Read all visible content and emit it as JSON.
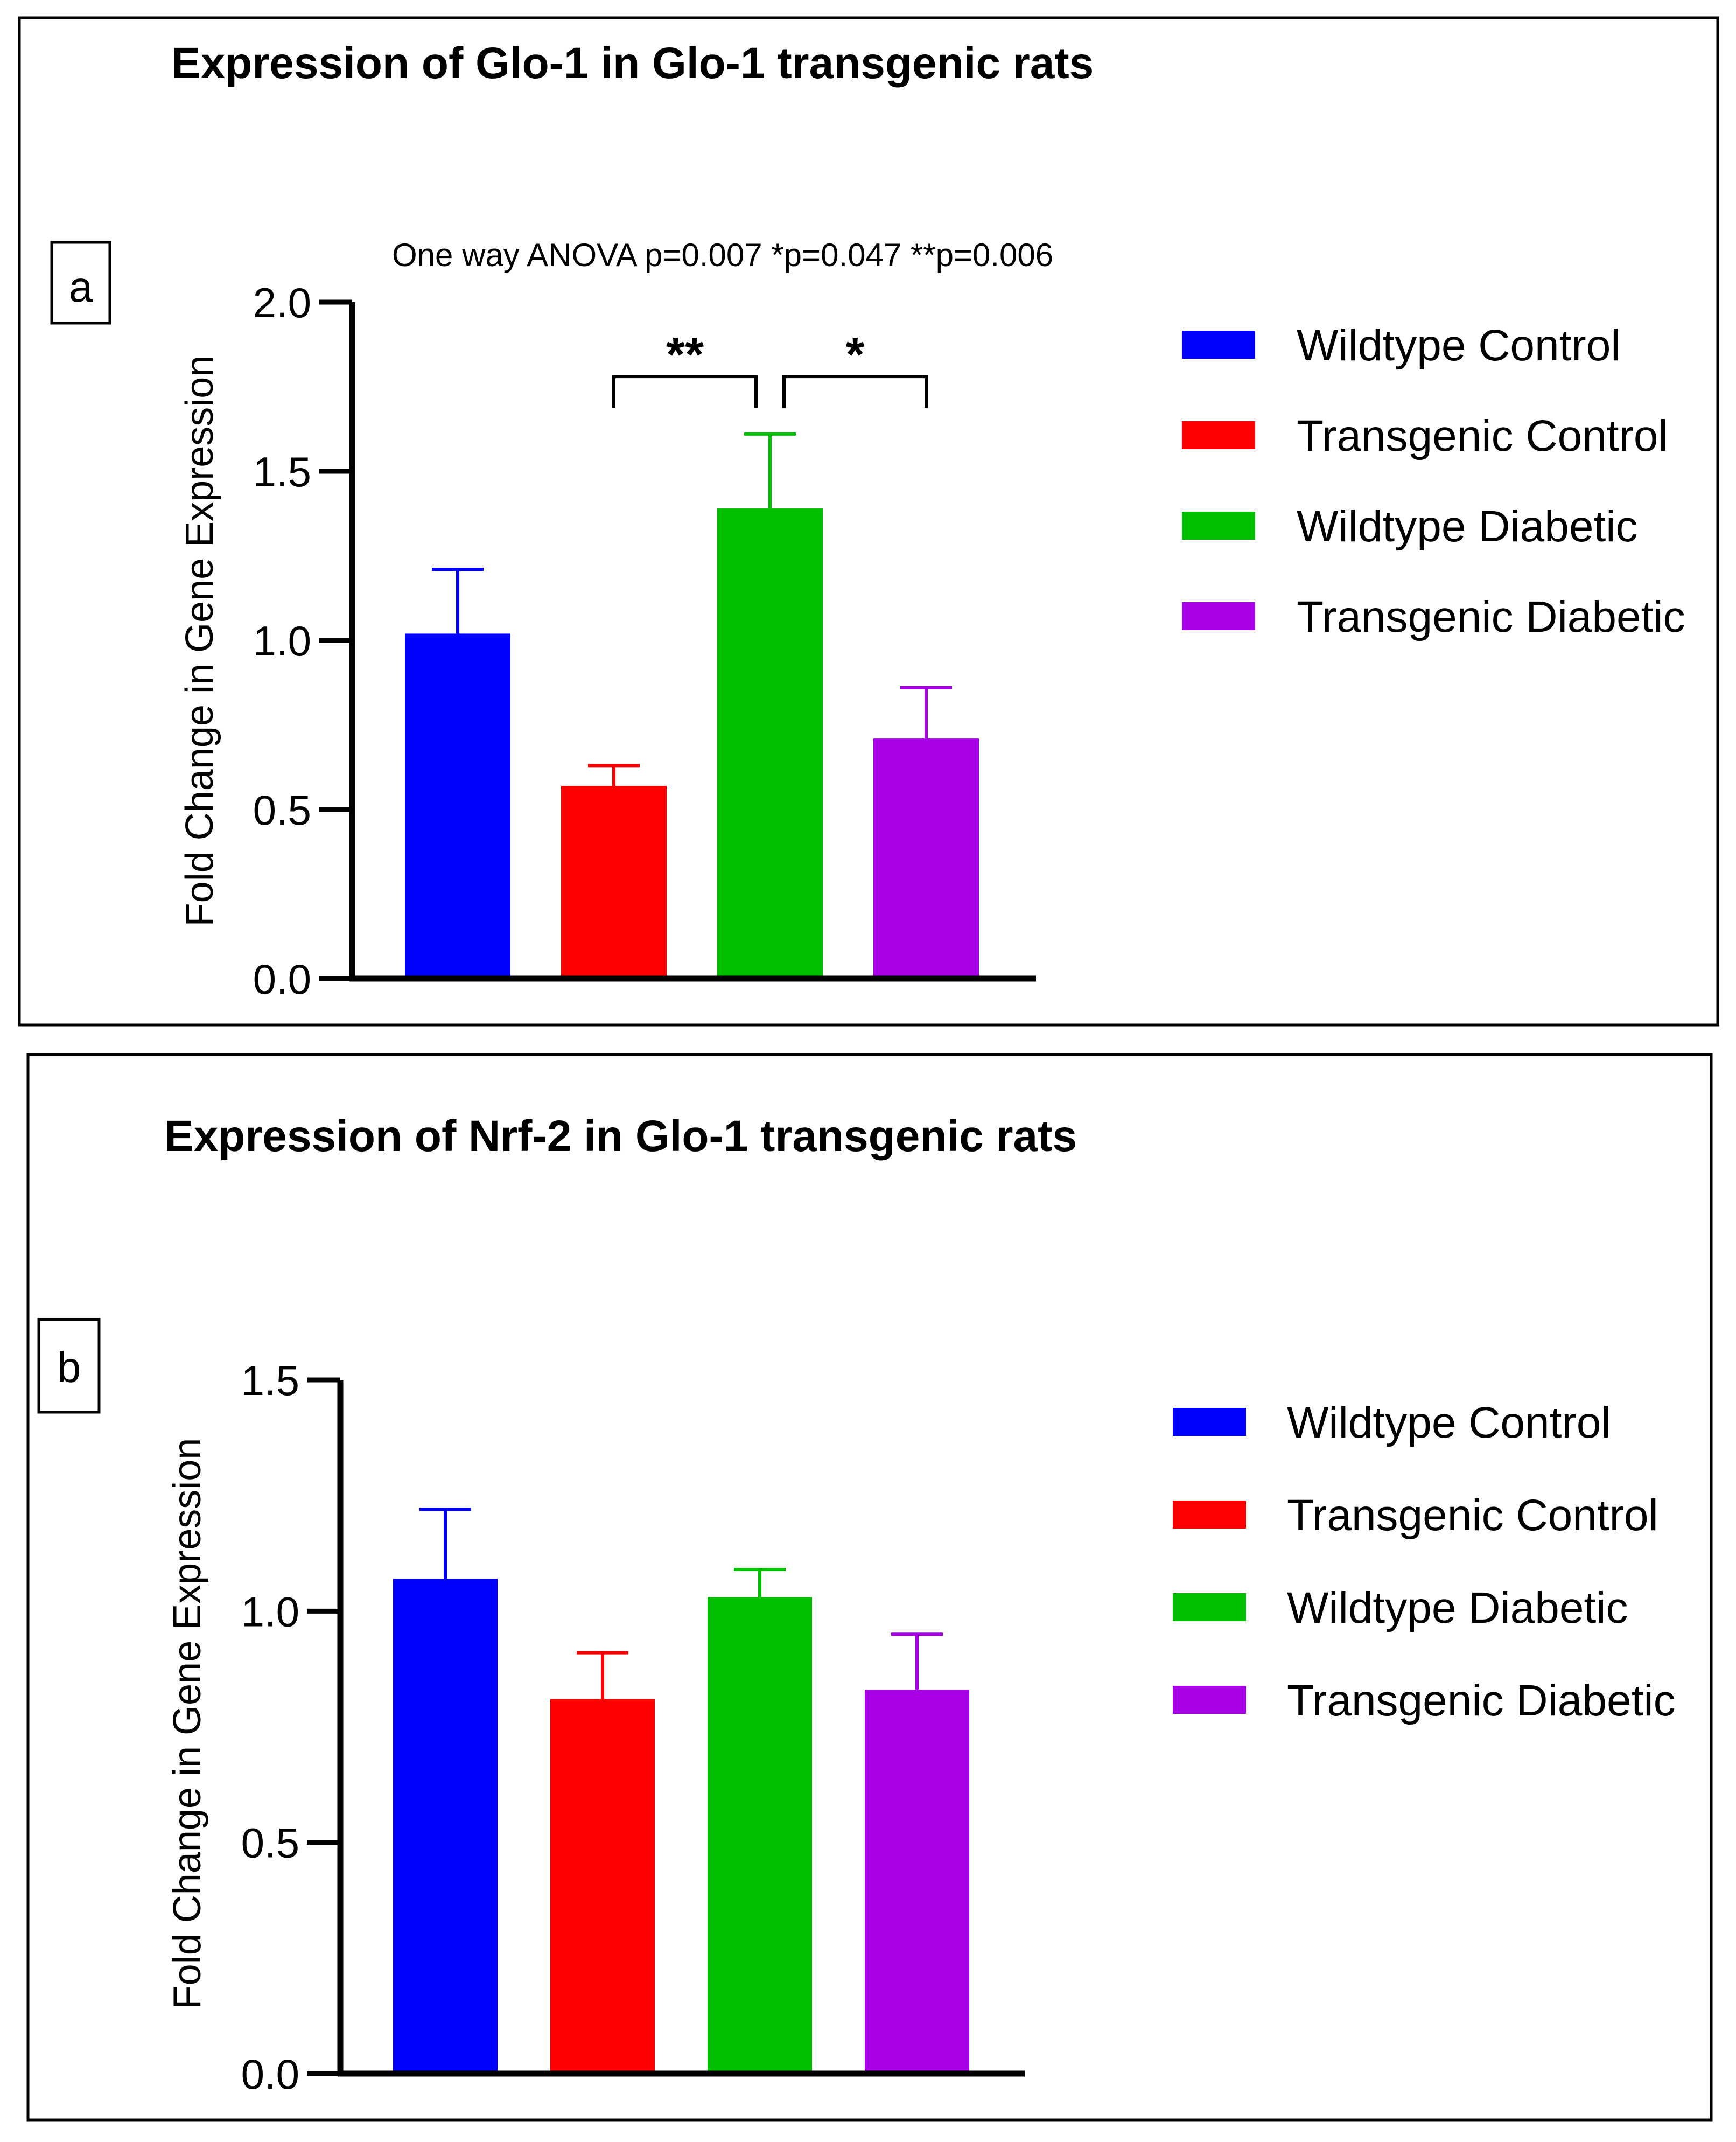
{
  "colors": {
    "wildtype_control": "#0000FF",
    "transgenic_control": "#FF0000",
    "wildtype_diabetic": "#00C000",
    "transgenic_diabetic": "#A800E6",
    "axis": "#000000",
    "frame": "#000000"
  },
  "chart_data": [
    {
      "type": "bar",
      "panel_label": "a",
      "title": "Expression of Glo-1 in Glo-1 transgenic rats",
      "annotation": "One way ANOVA p=0.007 *p=0.047 **p=0.006",
      "ylabel": "Fold Change in Gene Expression",
      "xlabel": "",
      "ylim": [
        0,
        2.0
      ],
      "yticks": [
        "0.0",
        "0.5",
        "1.0",
        "1.5",
        "2.0"
      ],
      "ytick_values": [
        0,
        0.5,
        1.0,
        1.5,
        2.0
      ],
      "categories": [
        "Wildtype Control",
        "Transgenic Control",
        "Wildtype Diabetic",
        "Transgenic Diabetic"
      ],
      "values": [
        1.02,
        0.57,
        1.39,
        0.71
      ],
      "errors": [
        0.19,
        0.06,
        0.22,
        0.15
      ],
      "significance": [
        {
          "from": 1,
          "to": 2,
          "label": "**",
          "level": 1.78
        },
        {
          "from": 2,
          "to": 3,
          "label": "*",
          "level": 1.78
        }
      ],
      "legend": [
        "Wildtype Control",
        "Transgenic Control",
        "Wildtype Diabetic",
        "Transgenic Diabetic"
      ],
      "legend_position": "right"
    },
    {
      "type": "bar",
      "panel_label": "b",
      "title": "Expression of Nrf-2 in Glo-1 transgenic rats",
      "ylabel": "Fold Change in Gene Expression",
      "xlabel": "",
      "ylim": [
        0,
        1.5
      ],
      "yticks": [
        "0.0",
        "0.5",
        "1.0",
        "1.5"
      ],
      "ytick_values": [
        0,
        0.5,
        1.0,
        1.5
      ],
      "categories": [
        "Wildtype Control",
        "Transgenic Control",
        "Wildtype Diabetic",
        "Transgenic Diabetic"
      ],
      "values": [
        1.07,
        0.81,
        1.03,
        0.83
      ],
      "errors": [
        0.15,
        0.1,
        0.06,
        0.12
      ],
      "significance": [],
      "legend": [
        "Wildtype Control",
        "Transgenic Control",
        "Wildtype Diabetic",
        "Transgenic Diabetic"
      ],
      "legend_position": "right"
    }
  ]
}
